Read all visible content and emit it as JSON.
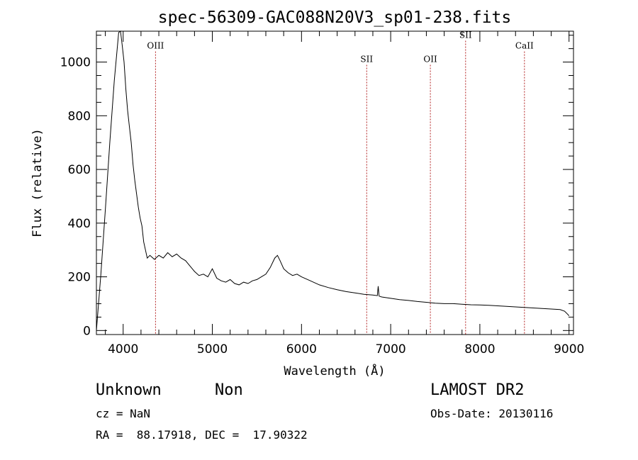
{
  "chart_data": {
    "type": "line",
    "title": "spec-56309-GAC088N20V3_sp01-238.fits",
    "xlabel": "Wavelength (Å)",
    "ylabel": "Flux (relative)",
    "xlim": [
      3700,
      9050
    ],
    "ylim": [
      -15,
      1115
    ],
    "xticks": [
      4000,
      5000,
      6000,
      7000,
      8000,
      9000
    ],
    "xtick_labels": [
      "4000",
      "5000",
      "6000",
      "7000",
      "8000",
      "9000"
    ],
    "yticks": [
      0,
      200,
      400,
      600,
      800,
      1000
    ],
    "ytick_labels": [
      "0",
      "200",
      "400",
      "600",
      "800",
      "1000"
    ],
    "grid": false,
    "series": [
      {
        "x": [
          3700,
          3750,
          3800,
          3850,
          3900,
          3950,
          3970,
          3990,
          4010,
          4030,
          4050,
          4070,
          4090,
          4110,
          4130,
          4150,
          4170,
          4190,
          4210,
          4230,
          4250,
          4270,
          4300,
          4350,
          4400,
          4450,
          4500,
          4550,
          4600,
          4650,
          4700,
          4750,
          4800,
          4850,
          4900,
          4950,
          5000,
          5050,
          5100,
          5150,
          5200,
          5250,
          5300,
          5350,
          5400,
          5450,
          5500,
          5550,
          5600,
          5650,
          5700,
          5730,
          5760,
          5800,
          5850,
          5900,
          5950,
          6000,
          6100,
          6200,
          6300,
          6400,
          6500,
          6600,
          6700,
          6800,
          6850,
          6860,
          6870,
          6900,
          7000,
          7100,
          7200,
          7300,
          7400,
          7500,
          7600,
          7700,
          7800,
          7900,
          8000,
          8100,
          8200,
          8300,
          8400,
          8500,
          8600,
          8700,
          8800,
          8900,
          8950,
          8980,
          9000
        ],
        "y": [
          0,
          210,
          450,
          700,
          930,
          1110,
          1115,
          1060,
          1000,
          900,
          820,
          760,
          700,
          620,
          560,
          510,
          460,
          420,
          390,
          330,
          300,
          270,
          280,
          265,
          280,
          270,
          290,
          275,
          285,
          270,
          260,
          240,
          220,
          205,
          210,
          200,
          230,
          195,
          185,
          180,
          190,
          175,
          170,
          180,
          175,
          185,
          190,
          200,
          210,
          235,
          270,
          280,
          260,
          230,
          215,
          205,
          210,
          200,
          185,
          170,
          160,
          152,
          145,
          140,
          135,
          132,
          130,
          165,
          128,
          125,
          120,
          115,
          112,
          108,
          105,
          102,
          100,
          100,
          98,
          96,
          95,
          94,
          92,
          90,
          88,
          86,
          84,
          82,
          80,
          78,
          72,
          62,
          55
        ]
      }
    ],
    "lines": [
      {
        "wavelength": 4363,
        "label": "OIII",
        "label_y": 1050
      },
      {
        "wavelength": 6731,
        "label": "SII",
        "label_y": 1000
      },
      {
        "wavelength": 7445,
        "label": "OII",
        "label_y": 1000
      },
      {
        "wavelength": 7840,
        "label": "SII",
        "label_y": 1090
      },
      {
        "wavelength": 8500,
        "label": "CaII",
        "label_y": 1050
      }
    ],
    "line_color": "#000000",
    "marker_color": "#b22222"
  },
  "info": {
    "class_label": "Unknown",
    "subclass_label": "Non",
    "survey": "LAMOST DR2",
    "cz": "cz = NaN",
    "obs_date": "Obs-Date: 20130116",
    "coords": "RA =  88.17918, DEC =  17.90322"
  }
}
